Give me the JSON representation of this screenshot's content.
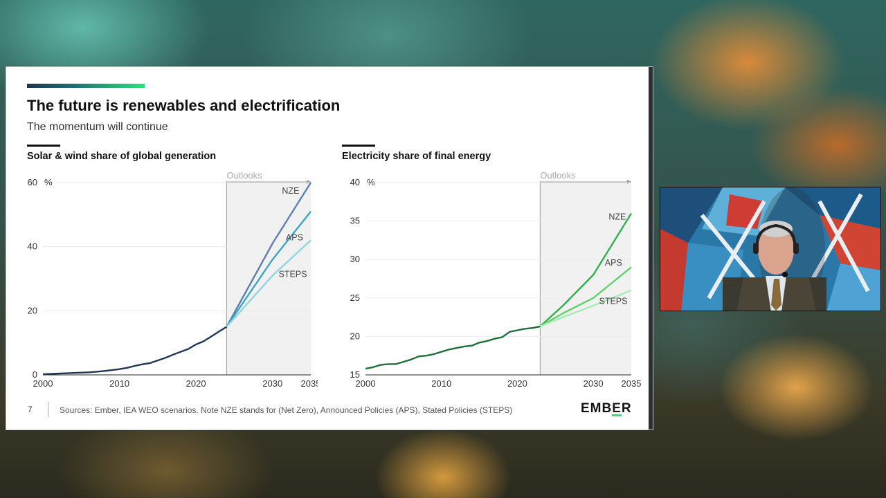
{
  "slide": {
    "title": "The future is renewables and electrification",
    "subtitle": "The momentum will continue",
    "page_number": "7",
    "sources": "Sources: Ember, IEA WEO scenarios. Note NZE stands for (Net Zero), Announced Policies (APS), Stated Policies (STEPS)",
    "logo_text": "EMBER",
    "colors": {
      "accent_green": "#2ee07e",
      "navy": "#1f3550"
    }
  },
  "chart_data": [
    {
      "type": "line",
      "title": "Solar & wind share of global generation",
      "unit_label": "%",
      "outlook_label": "Outlooks",
      "outlook_start": 2024,
      "xlim": [
        2000,
        2035
      ],
      "ylim": [
        0,
        60
      ],
      "x_ticks": [
        "2000",
        "2010",
        "2020",
        "2030",
        "2035"
      ],
      "y_ticks": [
        "0",
        "20",
        "40",
        "60"
      ],
      "grid": true,
      "series": [
        {
          "name": "historical",
          "color": "#1f3550",
          "x": [
            2000,
            2001,
            2002,
            2003,
            2004,
            2005,
            2006,
            2007,
            2008,
            2009,
            2010,
            2011,
            2012,
            2013,
            2014,
            2015,
            2016,
            2017,
            2018,
            2019,
            2020,
            2021,
            2022,
            2023,
            2024
          ],
          "y": [
            0.2,
            0.3,
            0.4,
            0.5,
            0.6,
            0.7,
            0.8,
            1.0,
            1.2,
            1.5,
            1.8,
            2.2,
            2.8,
            3.3,
            3.7,
            4.5,
            5.3,
            6.3,
            7.2,
            8.1,
            9.5,
            10.5,
            12.0,
            13.5,
            15.0
          ]
        },
        {
          "name": "NZE",
          "color": "#5a7fb0",
          "x": [
            2024,
            2030,
            2035
          ],
          "y": [
            15,
            41,
            60
          ]
        },
        {
          "name": "APS",
          "color": "#3aa6c4",
          "x": [
            2024,
            2030,
            2035
          ],
          "y": [
            15,
            36,
            51
          ]
        },
        {
          "name": "STEPS",
          "color": "#8fd6df",
          "x": [
            2024,
            2030,
            2035
          ],
          "y": [
            15,
            31,
            42
          ]
        }
      ]
    },
    {
      "type": "line",
      "title": "Electricity share of final energy",
      "unit_label": "%",
      "outlook_label": "Outlooks",
      "outlook_start": 2023,
      "xlim": [
        2000,
        2035
      ],
      "ylim": [
        15,
        40
      ],
      "x_ticks": [
        "2000",
        "2010",
        "2020",
        "2030",
        "2035"
      ],
      "y_ticks": [
        "15",
        "20",
        "25",
        "30",
        "35",
        "40"
      ],
      "grid": true,
      "series": [
        {
          "name": "historical",
          "color": "#1f6e3c",
          "x": [
            2000,
            2001,
            2002,
            2003,
            2004,
            2005,
            2006,
            2007,
            2008,
            2009,
            2010,
            2011,
            2012,
            2013,
            2014,
            2015,
            2016,
            2017,
            2018,
            2019,
            2020,
            2021,
            2022,
            2023
          ],
          "y": [
            15.8,
            16.0,
            16.3,
            16.4,
            16.4,
            16.7,
            17.0,
            17.4,
            17.5,
            17.7,
            18.0,
            18.3,
            18.5,
            18.7,
            18.8,
            19.2,
            19.4,
            19.7,
            19.9,
            20.6,
            20.8,
            21.0,
            21.1,
            21.3
          ]
        },
        {
          "name": "NZE",
          "color": "#2fb24c",
          "x": [
            2023,
            2026,
            2030,
            2035
          ],
          "y": [
            21.3,
            24.0,
            28.0,
            36.0
          ]
        },
        {
          "name": "APS",
          "color": "#5fd36a",
          "x": [
            2023,
            2026,
            2030,
            2035
          ],
          "y": [
            21.3,
            23.0,
            25.0,
            29.0
          ]
        },
        {
          "name": "STEPS",
          "color": "#a6ebb2",
          "x": [
            2023,
            2026,
            2030,
            2035
          ],
          "y": [
            21.3,
            22.5,
            24.0,
            26.0
          ]
        }
      ]
    }
  ],
  "webcam": {
    "label": "presenter video feed"
  }
}
